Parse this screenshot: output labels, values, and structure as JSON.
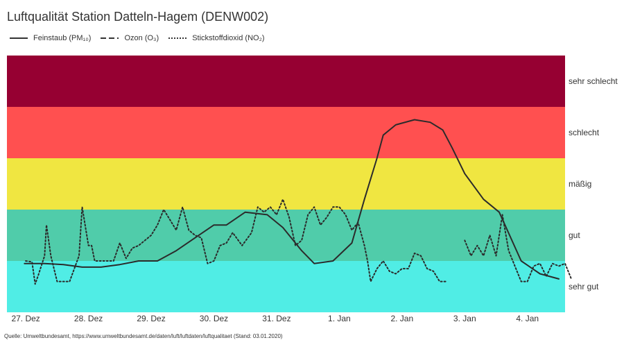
{
  "title": "Luftqualität Station Datteln-Hagem (DENW002)",
  "source": "Quelle: Umweltbundesamt, https://www.umweltbundesamt.de/daten/luft/luftdaten/luftqualitaet (Stand: 03.01.2020)",
  "legend": [
    {
      "name": "Feinstaub (PM₁₀)",
      "style": "solid"
    },
    {
      "name": "Ozon (O₃)",
      "style": "dashed"
    },
    {
      "name": "Stickstoffdioxid (NO₂)",
      "style": "dotted"
    }
  ],
  "chart_data": {
    "type": "line",
    "x_ticks": [
      "27. Dez",
      "28. Dez",
      "29. Dez",
      "30. Dez",
      "31. Dez",
      "1. Jan",
      "2. Jan",
      "3. Jan",
      "4. Jan"
    ],
    "x_range_days": [
      -0.3,
      8.6
    ],
    "y_range": [
      0,
      5
    ],
    "bands": [
      {
        "label": "sehr gut",
        "from": 0,
        "to": 1,
        "color": "#50EDE5"
      },
      {
        "label": "gut",
        "from": 1,
        "to": 2,
        "color": "#50CCAA"
      },
      {
        "label": "mäßig",
        "from": 2,
        "to": 3,
        "color": "#F0E641"
      },
      {
        "label": "schlecht",
        "from": 3,
        "to": 4,
        "color": "#FF5050"
      },
      {
        "label": "sehr schlecht",
        "from": 4,
        "to": 5,
        "color": "#960032"
      }
    ],
    "series": [
      {
        "name": "Feinstaub (PM₁₀)",
        "style": "solid",
        "points": [
          [
            -0.02,
            0.95
          ],
          [
            0.3,
            0.95
          ],
          [
            0.6,
            0.93
          ],
          [
            0.9,
            0.88
          ],
          [
            1.2,
            0.88
          ],
          [
            1.5,
            0.93
          ],
          [
            1.8,
            1.0
          ],
          [
            2.1,
            1.0
          ],
          [
            2.4,
            1.2
          ],
          [
            2.7,
            1.45
          ],
          [
            3.0,
            1.7
          ],
          [
            3.2,
            1.7
          ],
          [
            3.5,
            1.95
          ],
          [
            3.85,
            1.9
          ],
          [
            4.1,
            1.65
          ],
          [
            4.4,
            1.2
          ],
          [
            4.6,
            0.95
          ],
          [
            4.9,
            1.0
          ],
          [
            5.2,
            1.35
          ],
          [
            5.4,
            2.2
          ],
          [
            5.6,
            3.0
          ],
          [
            5.7,
            3.45
          ],
          [
            5.9,
            3.65
          ],
          [
            6.2,
            3.75
          ],
          [
            6.45,
            3.7
          ],
          [
            6.65,
            3.55
          ],
          [
            6.8,
            3.2
          ],
          [
            7.0,
            2.7
          ],
          [
            7.3,
            2.2
          ],
          [
            7.55,
            1.95
          ],
          [
            7.9,
            1.0
          ],
          [
            8.2,
            0.75
          ],
          [
            8.5,
            0.65
          ]
        ]
      },
      {
        "name": "Stickstoffdioxid (NO₂)",
        "style": "dotted",
        "points": [
          [
            0.0,
            1.0
          ],
          [
            0.1,
            0.98
          ],
          [
            0.15,
            0.55
          ],
          [
            0.2,
            0.72
          ],
          [
            0.3,
            1.1
          ],
          [
            0.33,
            1.7
          ],
          [
            0.4,
            1.1
          ],
          [
            0.5,
            0.6
          ],
          [
            0.7,
            0.6
          ],
          [
            0.85,
            1.1
          ],
          [
            0.9,
            2.05
          ],
          [
            1.0,
            1.3
          ],
          [
            1.05,
            1.3
          ],
          [
            1.1,
            1.0
          ],
          [
            1.2,
            1.0
          ],
          [
            1.4,
            1.0
          ],
          [
            1.5,
            1.35
          ],
          [
            1.6,
            1.05
          ],
          [
            1.7,
            1.25
          ],
          [
            1.8,
            1.3
          ],
          [
            1.9,
            1.4
          ],
          [
            2.0,
            1.5
          ],
          [
            2.1,
            1.7
          ],
          [
            2.2,
            2.0
          ],
          [
            2.3,
            1.8
          ],
          [
            2.4,
            1.6
          ],
          [
            2.5,
            2.05
          ],
          [
            2.6,
            1.6
          ],
          [
            2.7,
            1.5
          ],
          [
            2.8,
            1.45
          ],
          [
            2.9,
            0.95
          ],
          [
            3.0,
            1.0
          ],
          [
            3.1,
            1.3
          ],
          [
            3.2,
            1.35
          ],
          [
            3.3,
            1.55
          ],
          [
            3.45,
            1.3
          ],
          [
            3.6,
            1.55
          ],
          [
            3.7,
            2.05
          ],
          [
            3.8,
            1.95
          ],
          [
            3.9,
            2.05
          ],
          [
            4.0,
            1.9
          ],
          [
            4.1,
            2.2
          ],
          [
            4.2,
            1.85
          ],
          [
            4.3,
            1.3
          ],
          [
            4.4,
            1.4
          ],
          [
            4.5,
            1.9
          ],
          [
            4.6,
            2.05
          ],
          [
            4.7,
            1.7
          ],
          [
            4.8,
            1.85
          ],
          [
            4.9,
            2.05
          ],
          [
            5.0,
            2.05
          ],
          [
            5.1,
            1.9
          ],
          [
            5.2,
            1.6
          ],
          [
            5.3,
            1.75
          ],
          [
            5.4,
            1.3
          ],
          [
            5.45,
            1.0
          ],
          [
            5.5,
            0.6
          ],
          [
            5.6,
            0.85
          ],
          [
            5.7,
            1.0
          ],
          [
            5.8,
            0.8
          ],
          [
            5.9,
            0.75
          ],
          [
            6.0,
            0.85
          ],
          [
            6.1,
            0.85
          ],
          [
            6.2,
            1.15
          ],
          [
            6.3,
            1.1
          ],
          [
            6.4,
            0.85
          ],
          [
            6.5,
            0.8
          ],
          [
            6.6,
            0.6
          ],
          [
            6.7,
            0.6
          ]
        ],
        "points2": [
          [
            7.0,
            1.4
          ],
          [
            7.1,
            1.1
          ],
          [
            7.2,
            1.3
          ],
          [
            7.3,
            1.1
          ],
          [
            7.4,
            1.5
          ],
          [
            7.5,
            1.1
          ],
          [
            7.6,
            1.9
          ],
          [
            7.7,
            1.2
          ],
          [
            7.8,
            0.9
          ],
          [
            7.9,
            0.6
          ],
          [
            8.0,
            0.6
          ],
          [
            8.1,
            0.9
          ],
          [
            8.2,
            0.95
          ],
          [
            8.3,
            0.7
          ],
          [
            8.4,
            0.95
          ],
          [
            8.5,
            0.9
          ],
          [
            8.6,
            0.95
          ],
          [
            8.7,
            0.65
          ]
        ]
      }
    ]
  }
}
